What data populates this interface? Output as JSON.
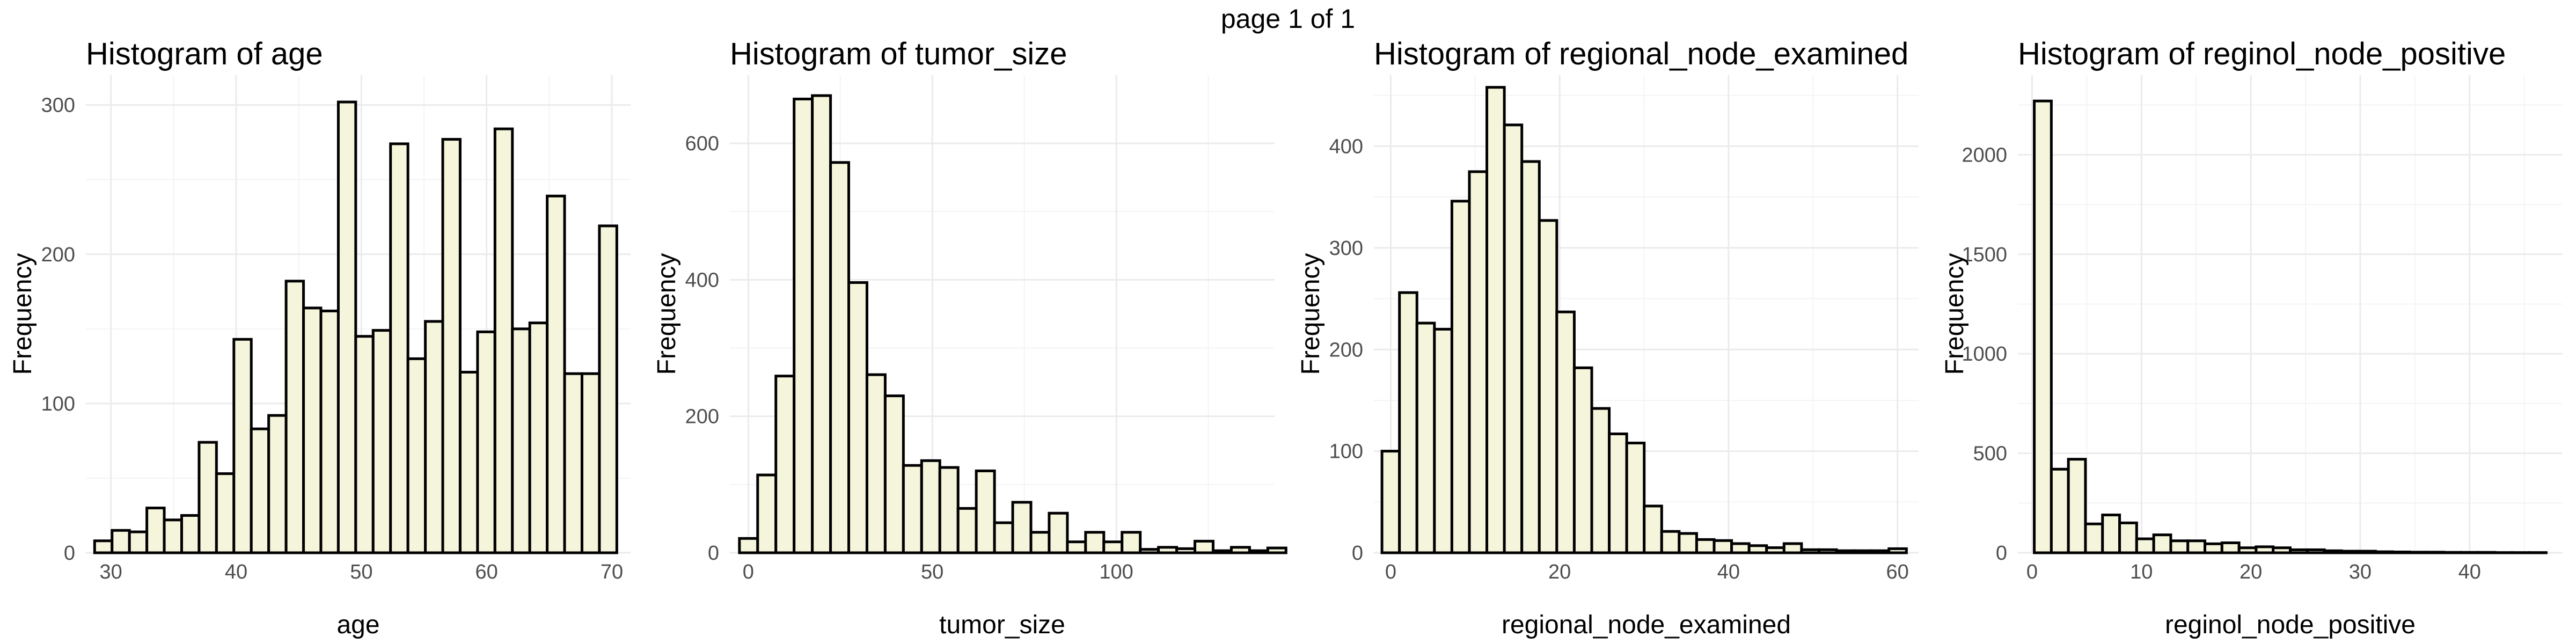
{
  "page": {
    "title": "page 1 of 1"
  },
  "colors": {
    "bar_fill": "#f5f5dc",
    "bar_stroke": "#000000",
    "grid": "#ebebeb",
    "tick_text": "#4d4d4d"
  },
  "chart_data": [
    {
      "type": "bar",
      "title": "Histogram of age",
      "xlabel": "age",
      "ylabel": "Frequency",
      "xlim": [
        28,
        71.5
      ],
      "ylim": [
        0,
        320
      ],
      "xticks": [
        30,
        40,
        50,
        60,
        70
      ],
      "yticks": [
        0,
        100,
        200,
        300
      ],
      "grid": true,
      "bin_start": 28.7,
      "bin_width": 1.39,
      "values": [
        8,
        15,
        14,
        30,
        22,
        25,
        74,
        53,
        143,
        83,
        92,
        182,
        164,
        162,
        302,
        145,
        149,
        274,
        130,
        155,
        277,
        121,
        148,
        284,
        150,
        154,
        239,
        120,
        120,
        219
      ]
    },
    {
      "type": "bar",
      "title": "Histogram of tumor_size",
      "xlabel": "tumor_size",
      "ylabel": "Frequency",
      "xlim": [
        -5,
        143
      ],
      "ylim": [
        0,
        700
      ],
      "xticks": [
        0,
        50,
        100
      ],
      "yticks": [
        0,
        200,
        400,
        600
      ],
      "grid": true,
      "bin_start": -2.4,
      "bin_width": 4.95,
      "values": [
        21,
        114,
        259,
        665,
        670,
        572,
        396,
        261,
        230,
        128,
        135,
        125,
        65,
        120,
        44,
        74,
        30,
        58,
        16,
        30,
        16,
        30,
        5,
        8,
        6,
        17,
        3,
        8,
        3,
        7
      ]
    },
    {
      "type": "bar",
      "title": "Histogram of regional_node_examined",
      "xlabel": "regional_node_examined",
      "ylabel": "Frequency",
      "xlim": [
        -2,
        62.5
      ],
      "ylim": [
        0,
        470
      ],
      "xticks": [
        0,
        20,
        40,
        60
      ],
      "yticks": [
        0,
        100,
        200,
        300,
        400
      ],
      "grid": true,
      "bin_start": -1.04,
      "bin_width": 2.07,
      "values": [
        100,
        256,
        226,
        220,
        346,
        375,
        458,
        421,
        385,
        327,
        237,
        182,
        142,
        117,
        108,
        46,
        21,
        19,
        13,
        12,
        9,
        7,
        5,
        9,
        3,
        3,
        2,
        2,
        2,
        4
      ]
    },
    {
      "type": "bar",
      "title": "Histogram of reginol_node_positive",
      "xlabel": "reginol_node_positive",
      "ylabel": "Frequency",
      "xlim": [
        -1.3,
        48.5
      ],
      "ylim": [
        0,
        2400
      ],
      "xticks": [
        0,
        10,
        20,
        30,
        40
      ],
      "yticks": [
        0,
        500,
        1000,
        1500,
        2000
      ],
      "grid": true,
      "bin_start": 0.2,
      "bin_width": 1.56,
      "values": [
        2270,
        420,
        470,
        145,
        190,
        150,
        70,
        90,
        60,
        60,
        45,
        50,
        25,
        30,
        25,
        15,
        15,
        10,
        8,
        8,
        5,
        4,
        3,
        3,
        2,
        2,
        2,
        1,
        1,
        1
      ]
    }
  ]
}
